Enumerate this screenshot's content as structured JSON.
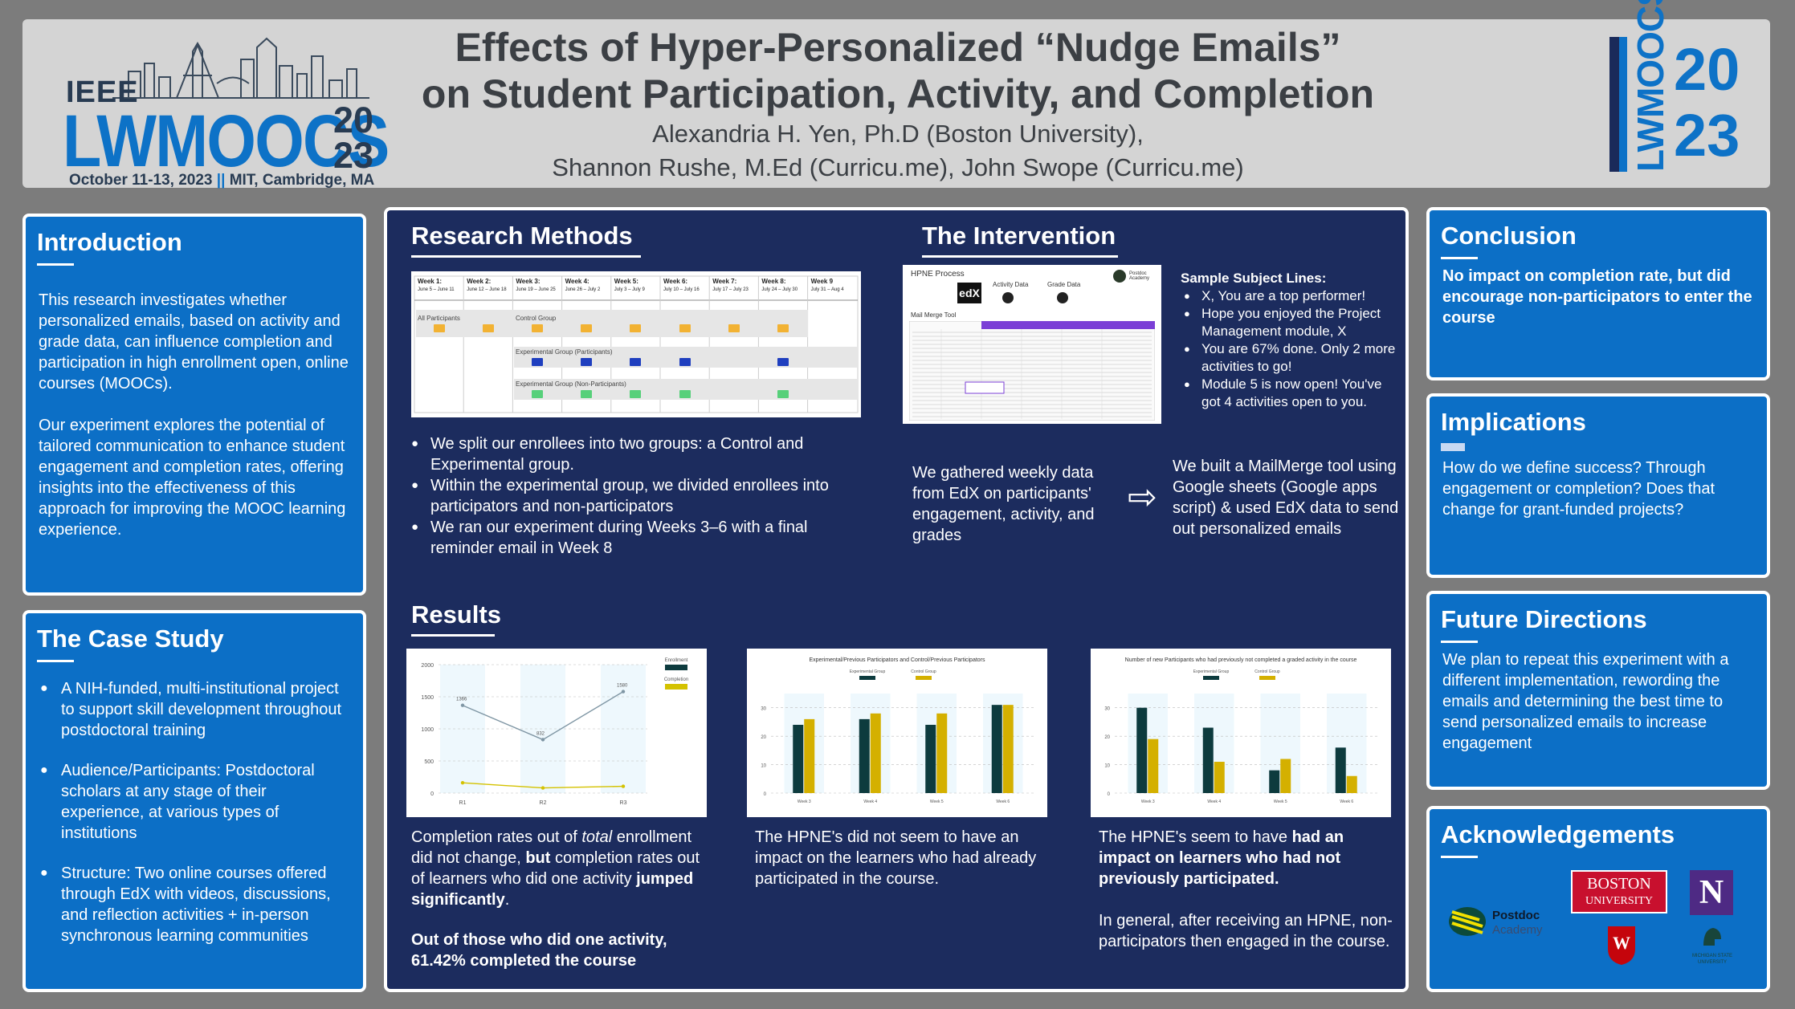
{
  "header": {
    "logo": {
      "ieee": "IEEE",
      "name": "LWMOOCS",
      "year_top": "20",
      "year_bottom": "23",
      "date": "October 11-13, 2023",
      "separator": "||",
      "location": "MIT, Cambridge, MA"
    },
    "title_line1": "Effects of Hyper-Personalized “Nudge Emails”",
    "title_line2": "on Student Participation, Activity, and Completion",
    "authors_line1": "Alexandria H. Yen, Ph.D (Boston University),",
    "authors_line2": "Shannon Rushe, M.Ed (Curricu.me), John Swope (Curricu.me)",
    "logo_right": {
      "name": "LWMOOCS",
      "year_top": "20",
      "year_bottom": "23"
    }
  },
  "introduction": {
    "title": "Introduction",
    "p1": "This research investigates whether personalized emails, based on activity and grade data, can influence completion and participation in high enrollment open, online courses (MOOCs).",
    "p2": "Our experiment explores the potential of tailored communication to enhance student engagement and completion rates, offering insights into the effectiveness of this approach for improving the MOOC learning experience."
  },
  "case_study": {
    "title": "The Case Study",
    "items": [
      "A NIH-funded, multi-institutional project to support skill development throughout postdoctoral training",
      "Audience/Participants: Postdoctoral scholars at any stage of their experience, at various types of institutions",
      "Structure: Two online courses offered through EdX with videos, discussions, and reflection activities + in-person synchronous learning communities"
    ]
  },
  "research_methods": {
    "title": "Research Methods",
    "schedule": {
      "weeks": [
        {
          "name": "Week 1:",
          "dates": "June 5 – June 11"
        },
        {
          "name": "Week 2:",
          "dates": "June 12 – June 18"
        },
        {
          "name": "Week 3:",
          "dates": "June 19 – June 25"
        },
        {
          "name": "Week 4:",
          "dates": "June 26 – July 2"
        },
        {
          "name": "Week 5:",
          "dates": "July 3 – July 9"
        },
        {
          "name": "Week 6:",
          "dates": "July 10 – July 16"
        },
        {
          "name": "Week 7:",
          "dates": "July 17 – July 23"
        },
        {
          "name": "Week 8:",
          "dates": "July 24 – July 30"
        },
        {
          "name": "Week 9",
          "dates": "July 31 – Aug 4"
        }
      ],
      "groups": {
        "all": "All Participants",
        "control": "Control Group",
        "exp_participants": "Experimental Group (Participants)",
        "exp_non_participants": "Experimental Group (Non-Participants)"
      }
    },
    "bullets": [
      "We split our enrollees into two groups: a Control and Experimental group.",
      "Within the experimental group, we divided enrollees into participators and non-participators",
      "We ran our experiment during Weeks 3–6 with a final reminder email in Week 8"
    ]
  },
  "intervention": {
    "title": "The Intervention",
    "process": {
      "title": "HPNE Process",
      "edx": "edX",
      "activity": "Activity Data",
      "grade": "Grade Data",
      "mailmerge": "Mail Merge Tool",
      "brand": "Postdoc Academy"
    },
    "subject_title": "Sample Subject Lines:",
    "subjects": [
      "X, You are a top performer!",
      "Hope you enjoyed the Project Management module, X",
      "You are 67% done. Only 2 more activities to go!",
      "Module 5 is now open! You've got 4 activities open to you."
    ],
    "left_text": "We gathered weekly data from EdX on participants' engagement, activity, and grades",
    "arrow": "⇨",
    "right_text": "We built a MailMerge tool using Google sheets (Google apps script) & used EdX data to send out personalized emails"
  },
  "results": {
    "title": "Results",
    "col1": {
      "t1": "Completion rates out of ",
      "t1_em": "total",
      "t2": " enrollment did not change, ",
      "t2_b": "but",
      "t3": " completion rates out of learners who did one activity ",
      "t3_b": "jumped significantly",
      "t4": ".",
      "t5": "Out of those who did one activity, 61.42% completed the course"
    },
    "col2": "The HPNE's did not seem to have an impact on the learners who had already participated in the course.",
    "col3": {
      "t1": "The HPNE's seem to have ",
      "t1_b": "had an impact on learners who had not previously participated.",
      "t2": "In general, after receiving an HPNE, non-participators then engaged in the course."
    }
  },
  "conclusion": {
    "title": "Conclusion",
    "text": "No impact on completion rate, but did encourage non-participators to enter the course"
  },
  "implications": {
    "title": "Implications",
    "text": "How do we define success? Through engagement or completion? Does that change for grant-funded projects?"
  },
  "future": {
    "title": "Future Directions",
    "text": "We plan to repeat this experiment with a different implementation, rewording the emails and determining the best time to send personalized emails to increase engagement"
  },
  "acknowledgements": {
    "title": "Acknowledgements",
    "postdoc": "Postdoc",
    "academy": "Academy",
    "bu1": "BOSTON",
    "bu2": "UNIVERSITY",
    "nu": "N",
    "uw": "W",
    "msu": "MICHIGAN STATE UNIVERSITY"
  },
  "chart_data": [
    {
      "type": "line",
      "title": "",
      "x": [
        "R1",
        "R2",
        "R3"
      ],
      "ylim": [
        0,
        2000
      ],
      "yticks": [
        0,
        500,
        1000,
        1500,
        2000
      ],
      "legend": [
        "Enrollment",
        "Completion"
      ],
      "legend_position": "top-right",
      "series": [
        {
          "name": "Enrollment",
          "values": [
            1366,
            832,
            1580
          ],
          "color": "#7f96a4"
        },
        {
          "name": "Completion",
          "values": [
            160,
            80,
            105
          ],
          "color": "#d4c200"
        }
      ],
      "data_labels": [
        "1366",
        "832",
        "1580"
      ]
    },
    {
      "type": "bar",
      "title": "Experimental/Previous Participators and Control/Previous Participators",
      "categories": [
        "Week 3",
        "Week 4",
        "Week 5",
        "Week 6"
      ],
      "ylim": [
        0,
        35
      ],
      "yticks": [
        0,
        10,
        20,
        30
      ],
      "legend_position": "top",
      "series": [
        {
          "name": "Experimental Group",
          "values": [
            24,
            26,
            24,
            31
          ],
          "color": "#0d3b3e"
        },
        {
          "name": "Control Group",
          "values": [
            26,
            28,
            28,
            31
          ],
          "color": "#d4b000"
        }
      ]
    },
    {
      "type": "bar",
      "title": "Number of new Participants who had previously not completed a graded activity in the course",
      "categories": [
        "Week 3",
        "Week 4",
        "Week 5",
        "Week 6"
      ],
      "ylim": [
        0,
        35
      ],
      "yticks": [
        0,
        10,
        20,
        30
      ],
      "legend_position": "top",
      "series": [
        {
          "name": "Experimental Group",
          "values": [
            30,
            23,
            8,
            16
          ],
          "color": "#0d3b3e"
        },
        {
          "name": "Control Group",
          "values": [
            19,
            11,
            12,
            6
          ],
          "color": "#d4b000"
        }
      ]
    }
  ],
  "colors": {
    "panel_blue": "#0c6fc6",
    "center_navy": "#1c2c5e",
    "background": "#7c7c7c",
    "header_bg": "#d4d4d4"
  }
}
